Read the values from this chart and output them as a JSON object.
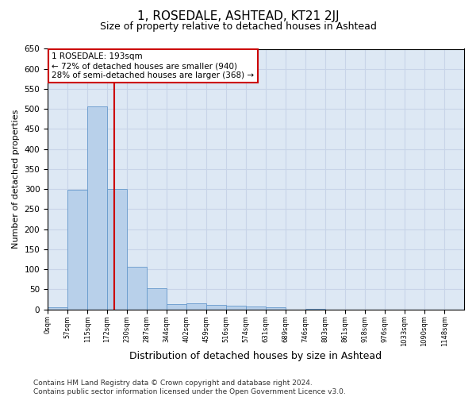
{
  "title": "1, ROSEDALE, ASHTEAD, KT21 2JJ",
  "subtitle": "Size of property relative to detached houses in Ashtead",
  "xlabel": "Distribution of detached houses by size in Ashtead",
  "ylabel": "Number of detached properties",
  "bar_values": [
    5,
    298,
    507,
    300,
    107,
    52,
    13,
    15,
    12,
    9,
    8,
    6,
    0,
    2,
    0,
    0,
    0,
    0,
    0,
    0
  ],
  "bin_edges": [
    0,
    57,
    115,
    172,
    230,
    287,
    344,
    402,
    459,
    516,
    574,
    631,
    689,
    746,
    803,
    861,
    918,
    976,
    1033,
    1090,
    1148
  ],
  "tick_labels": [
    "0sqm",
    "57sqm",
    "115sqm",
    "172sqm",
    "230sqm",
    "287sqm",
    "344sqm",
    "402sqm",
    "459sqm",
    "516sqm",
    "574sqm",
    "631sqm",
    "689sqm",
    "746sqm",
    "803sqm",
    "861sqm",
    "918sqm",
    "976sqm",
    "1033sqm",
    "1090sqm",
    "1148sqm"
  ],
  "bar_color": "#b8d0ea",
  "bar_edge_color": "#6699cc",
  "grid_color": "#c8d4e8",
  "background_color": "#dde8f4",
  "red_line_x": 193,
  "annotation_line1": "1 ROSEDALE: 193sqm",
  "annotation_line2": "← 72% of detached houses are smaller (940)",
  "annotation_line3": "28% of semi-detached houses are larger (368) →",
  "annotation_box_color": "white",
  "annotation_box_edge_color": "#cc0000",
  "ylim": [
    0,
    650
  ],
  "yticks": [
    0,
    50,
    100,
    150,
    200,
    250,
    300,
    350,
    400,
    450,
    500,
    550,
    600,
    650
  ],
  "footer_text": "Contains HM Land Registry data © Crown copyright and database right 2024.\nContains public sector information licensed under the Open Government Licence v3.0.",
  "title_fontsize": 11,
  "subtitle_fontsize": 9,
  "annotation_fontsize": 7.5,
  "footer_fontsize": 6.5,
  "ylabel_fontsize": 8,
  "xlabel_fontsize": 9
}
